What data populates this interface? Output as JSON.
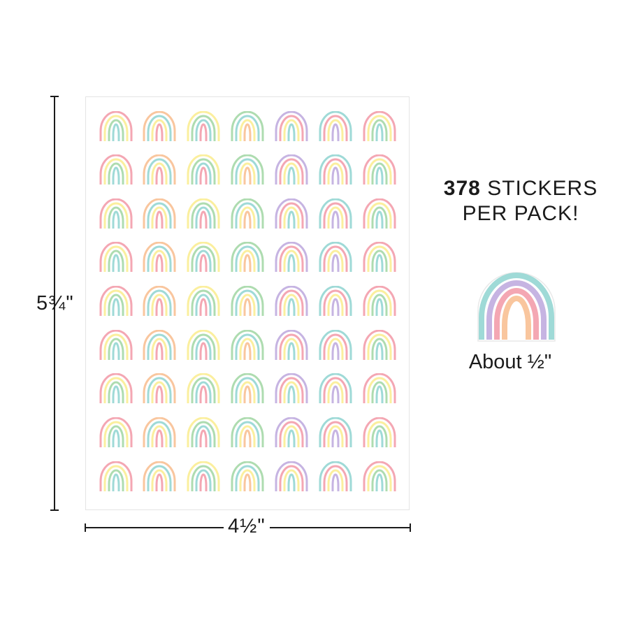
{
  "product": {
    "count_number": "378",
    "count_label": "STICKERS",
    "count_line2": "PER PACK!",
    "sheet_height": "5¾\"",
    "sheet_width": "4½\"",
    "sticker_size": "About ½\""
  },
  "sticker_colors": {
    "pink": "#f4a7b3",
    "peach": "#f9c69e",
    "yellow": "#fbef9e",
    "green": "#aedcb0",
    "lavender": "#c6b4e2",
    "aqua": "#9fdad7",
    "ink": "#1b1b1b"
  },
  "sheet_layout": {
    "rows": 9,
    "columns": 7,
    "column_palettes": [
      [
        "pink",
        "yellow",
        "green",
        "aqua"
      ],
      [
        "peach",
        "aqua",
        "yellow",
        "pink"
      ],
      [
        "yellow",
        "green",
        "aqua",
        "pink"
      ],
      [
        "green",
        "aqua",
        "yellow",
        "peach"
      ],
      [
        "lavender",
        "pink",
        "yellow",
        "aqua"
      ],
      [
        "aqua",
        "pink",
        "yellow",
        "lavender"
      ],
      [
        "pink",
        "yellow",
        "green",
        "aqua"
      ]
    ]
  },
  "sample_sticker_palette": [
    "aqua",
    "lavender",
    "pink",
    "peach",
    "yellow",
    "green"
  ]
}
